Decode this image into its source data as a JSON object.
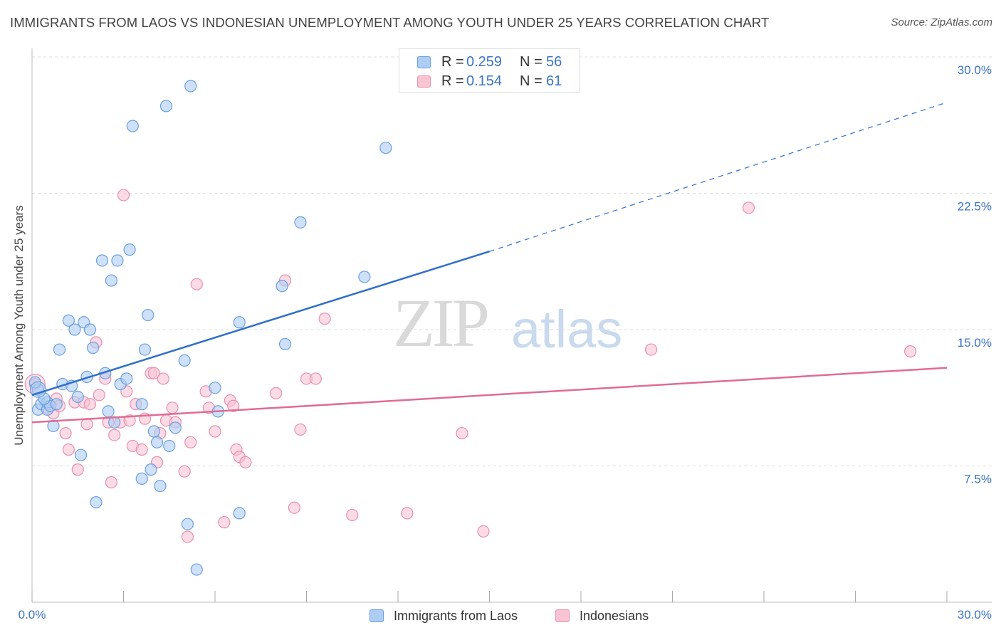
{
  "title": "IMMIGRANTS FROM LAOS VS INDONESIAN UNEMPLOYMENT AMONG YOUTH UNDER 25 YEARS CORRELATION CHART",
  "source": "Source: ZipAtlas.com",
  "watermark": {
    "zip": "ZIP",
    "atlas": "atlas"
  },
  "colors": {
    "series1_fill": "#aecdf3",
    "series1_stroke": "#6b9fe0",
    "series1_line": "#2f6fc9",
    "series2_fill": "#f8c3d3",
    "series2_stroke": "#e890ad",
    "series2_line": "#e06c94",
    "tick_text": "#3a74c5",
    "grid": "#dddddd"
  },
  "legend": {
    "series1": {
      "r_label": "R =",
      "r_value": "0.259",
      "n_label": "N =",
      "n_value": "56"
    },
    "series2": {
      "r_label": "R =",
      "r_value": "0.154",
      "n_label": "N =",
      "n_value": "61"
    }
  },
  "bottom_legend": {
    "series1": "Immigrants from Laos",
    "series2": "Indonesians"
  },
  "chart_data": {
    "type": "scatter",
    "title": "IMMIGRANTS FROM LAOS VS INDONESIAN UNEMPLOYMENT AMONG YOUTH UNDER 25 YEARS CORRELATION CHART",
    "xlabel": "",
    "ylabel": "Unemployment Among Youth under 25 years",
    "xlim": [
      0,
      30
    ],
    "ylim": [
      0,
      30
    ],
    "x_tick_labels": [
      "0.0%",
      "30.0%"
    ],
    "y_ticks": [
      7.5,
      15.0,
      22.5,
      30.0
    ],
    "y_tick_labels": [
      "7.5%",
      "15.0%",
      "22.5%",
      "30.0%"
    ],
    "grid": "horizontal dashed",
    "legend_position": "top-center",
    "series": [
      {
        "name": "Immigrants from Laos",
        "r": 0.259,
        "n": 56,
        "trend": {
          "x": [
            0,
            15
          ],
          "y": [
            11.4,
            19.3
          ],
          "dashed_extension_to": [
            30,
            27.5
          ]
        },
        "points": [
          [
            0.2,
            11.7
          ],
          [
            0.2,
            10.6
          ],
          [
            0.3,
            10.9
          ],
          [
            0.5,
            10.6
          ],
          [
            0.5,
            11.0
          ],
          [
            0.6,
            10.8
          ],
          [
            0.7,
            9.7
          ],
          [
            0.8,
            10.9
          ],
          [
            0.9,
            13.9
          ],
          [
            1.0,
            12.0
          ],
          [
            1.2,
            15.5
          ],
          [
            1.3,
            11.9
          ],
          [
            1.4,
            15.0
          ],
          [
            1.5,
            11.3
          ],
          [
            1.6,
            8.1
          ],
          [
            1.7,
            15.4
          ],
          [
            1.8,
            12.4
          ],
          [
            1.9,
            15.0
          ],
          [
            2.0,
            14.0
          ],
          [
            2.1,
            5.5
          ],
          [
            2.3,
            18.8
          ],
          [
            2.4,
            12.6
          ],
          [
            2.5,
            10.5
          ],
          [
            2.6,
            17.7
          ],
          [
            2.7,
            9.9
          ],
          [
            2.8,
            18.8
          ],
          [
            2.9,
            12.0
          ],
          [
            3.1,
            12.3
          ],
          [
            3.2,
            19.4
          ],
          [
            3.3,
            26.2
          ],
          [
            3.6,
            10.9
          ],
          [
            3.6,
            6.8
          ],
          [
            3.7,
            13.9
          ],
          [
            3.8,
            15.8
          ],
          [
            3.9,
            7.3
          ],
          [
            4.0,
            9.4
          ],
          [
            4.1,
            8.8
          ],
          [
            4.2,
            6.4
          ],
          [
            4.4,
            27.3
          ],
          [
            4.5,
            8.6
          ],
          [
            4.7,
            9.6
          ],
          [
            5.0,
            13.3
          ],
          [
            5.1,
            4.3
          ],
          [
            5.2,
            28.4
          ],
          [
            5.4,
            1.8
          ],
          [
            6.0,
            11.8
          ],
          [
            6.1,
            10.5
          ],
          [
            6.8,
            4.9
          ],
          [
            6.8,
            15.4
          ],
          [
            8.2,
            17.4
          ],
          [
            8.3,
            14.2
          ],
          [
            8.8,
            20.9
          ],
          [
            10.9,
            17.9
          ],
          [
            11.6,
            25.0
          ],
          [
            0.1,
            12.1
          ],
          [
            0.4,
            11.2
          ]
        ]
      },
      {
        "name": "Indonesians",
        "r": 0.154,
        "n": 61,
        "trend": {
          "x": [
            0,
            30
          ],
          "y": [
            9.9,
            12.9
          ]
        },
        "points": [
          [
            0.1,
            12.0
          ],
          [
            0.5,
            10.7
          ],
          [
            0.7,
            10.4
          ],
          [
            0.8,
            11.2
          ],
          [
            0.9,
            10.8
          ],
          [
            1.1,
            9.3
          ],
          [
            1.2,
            8.4
          ],
          [
            1.4,
            11.0
          ],
          [
            1.5,
            7.3
          ],
          [
            1.7,
            11.0
          ],
          [
            1.8,
            9.8
          ],
          [
            1.9,
            10.9
          ],
          [
            2.1,
            14.3
          ],
          [
            2.2,
            11.4
          ],
          [
            2.4,
            12.3
          ],
          [
            2.5,
            9.9
          ],
          [
            2.6,
            6.6
          ],
          [
            2.7,
            9.2
          ],
          [
            2.9,
            9.9
          ],
          [
            3.0,
            22.4
          ],
          [
            3.1,
            11.6
          ],
          [
            3.2,
            10.0
          ],
          [
            3.3,
            8.6
          ],
          [
            3.4,
            10.9
          ],
          [
            3.6,
            8.4
          ],
          [
            3.7,
            10.1
          ],
          [
            3.9,
            12.6
          ],
          [
            4.0,
            12.6
          ],
          [
            4.1,
            7.7
          ],
          [
            4.2,
            9.3
          ],
          [
            4.3,
            12.3
          ],
          [
            4.4,
            10.0
          ],
          [
            4.6,
            10.7
          ],
          [
            4.7,
            9.9
          ],
          [
            5.0,
            7.2
          ],
          [
            5.1,
            3.6
          ],
          [
            5.2,
            8.8
          ],
          [
            5.4,
            17.5
          ],
          [
            5.7,
            11.6
          ],
          [
            5.8,
            10.7
          ],
          [
            6.0,
            9.4
          ],
          [
            6.3,
            4.4
          ],
          [
            6.5,
            11.1
          ],
          [
            6.7,
            8.4
          ],
          [
            6.8,
            8.0
          ],
          [
            7.0,
            7.7
          ],
          [
            8.0,
            11.5
          ],
          [
            8.3,
            17.7
          ],
          [
            8.6,
            5.2
          ],
          [
            8.8,
            9.5
          ],
          [
            9.0,
            12.3
          ],
          [
            9.6,
            15.6
          ],
          [
            10.5,
            4.8
          ],
          [
            12.3,
            4.9
          ],
          [
            14.1,
            9.3
          ],
          [
            14.8,
            3.9
          ],
          [
            20.3,
            13.9
          ],
          [
            23.5,
            21.7
          ],
          [
            28.8,
            13.8
          ],
          [
            9.3,
            12.3
          ],
          [
            6.6,
            10.8
          ]
        ]
      }
    ]
  }
}
